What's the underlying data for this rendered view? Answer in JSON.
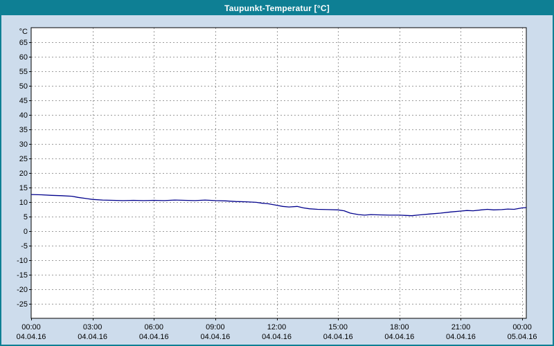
{
  "window": {
    "title": "Taupunkt-Temperatur [°C]"
  },
  "colors": {
    "titlebar": "#0e7f94",
    "background": "#cddcec",
    "plot_background": "#ffffff",
    "plot_border": "#000000",
    "grid": "#9a9a9a",
    "line": "#00008c",
    "text": "#000000"
  },
  "chart_data": {
    "type": "line",
    "title": "Taupunkt-Temperatur [°C]",
    "y_axis_unit_label": "°C",
    "ylim": [
      -30,
      70
    ],
    "xlim": [
      0,
      24.2
    ],
    "grid": "dashed",
    "legend": "none",
    "y_ticks": [
      65,
      60,
      55,
      50,
      45,
      40,
      35,
      30,
      25,
      20,
      15,
      10,
      5,
      0,
      -5,
      -10,
      -15,
      -20,
      -25
    ],
    "x_ticks": [
      {
        "hour": 0,
        "time": "00:00",
        "date": "04.04.16"
      },
      {
        "hour": 3,
        "time": "03:00",
        "date": "04.04.16"
      },
      {
        "hour": 6,
        "time": "06:00",
        "date": "04.04.16"
      },
      {
        "hour": 9,
        "time": "09:00",
        "date": "04.04.16"
      },
      {
        "hour": 12,
        "time": "12:00",
        "date": "04.04.16"
      },
      {
        "hour": 15,
        "time": "15:00",
        "date": "04.04.16"
      },
      {
        "hour": 18,
        "time": "18:00",
        "date": "04.04.16"
      },
      {
        "hour": 21,
        "time": "21:00",
        "date": "04.04.16"
      },
      {
        "hour": 24,
        "time": "00:00",
        "date": "05.04.16"
      }
    ],
    "series": [
      {
        "name": "Taupunkt-Temperatur",
        "color": "#00008c",
        "x": [
          0,
          0.5,
          1,
          1.5,
          2,
          2.3,
          2.6,
          3,
          3.5,
          4,
          4.5,
          5,
          5.5,
          6,
          6.5,
          7,
          7.5,
          8,
          8.5,
          9,
          9.5,
          10,
          10.5,
          11,
          11.3,
          11.6,
          12,
          12.3,
          12.6,
          13,
          13.3,
          13.6,
          14,
          14.5,
          15,
          15.3,
          15.6,
          16,
          16.3,
          16.6,
          17,
          17.5,
          18,
          18.3,
          18.6,
          19,
          19.5,
          20,
          20.5,
          21,
          21.3,
          21.6,
          22,
          22.3,
          22.6,
          23,
          23.3,
          23.6,
          24,
          24.2
        ],
        "y": [
          12.6,
          12.5,
          12.3,
          12.2,
          12.0,
          11.6,
          11.3,
          10.9,
          10.7,
          10.6,
          10.5,
          10.6,
          10.5,
          10.6,
          10.5,
          10.7,
          10.6,
          10.5,
          10.7,
          10.5,
          10.4,
          10.2,
          10.1,
          9.9,
          9.6,
          9.4,
          8.9,
          8.5,
          8.3,
          8.5,
          8.0,
          7.7,
          7.5,
          7.4,
          7.3,
          7.0,
          6.2,
          5.7,
          5.5,
          5.7,
          5.6,
          5.5,
          5.5,
          5.4,
          5.3,
          5.6,
          5.9,
          6.2,
          6.6,
          6.9,
          7.1,
          7.0,
          7.3,
          7.5,
          7.3,
          7.4,
          7.6,
          7.5,
          8.0,
          8.1
        ]
      }
    ]
  }
}
